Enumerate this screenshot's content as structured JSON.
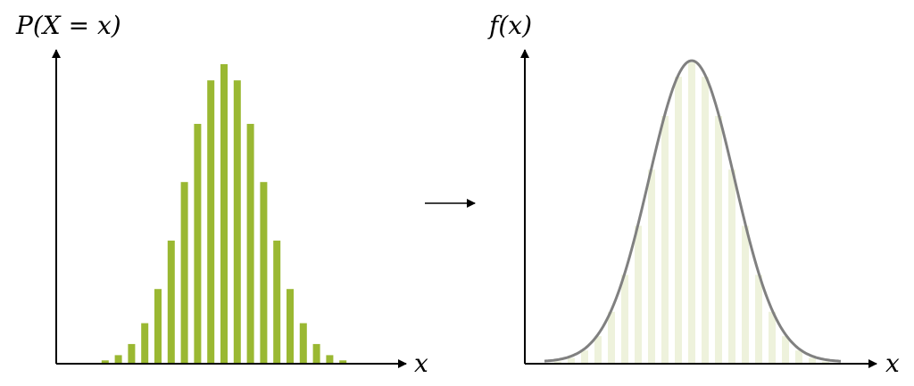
{
  "left": {
    "y_label": "P(X = x)",
    "x_label": "x"
  },
  "right": {
    "y_label": "f(x)",
    "x_label": "x"
  }
}
